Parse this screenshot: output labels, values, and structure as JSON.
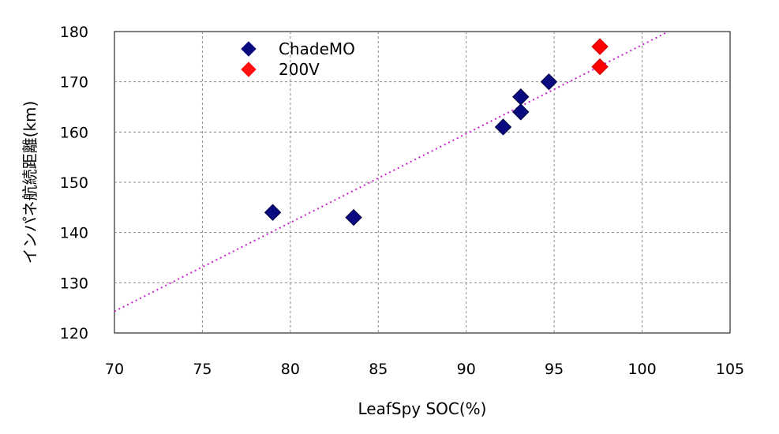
{
  "chart_data": {
    "type": "scatter",
    "title": "",
    "xlabel": "LeafSpy SOC(%)",
    "ylabel": "インパネ航続距離(km)",
    "xlim": [
      70,
      105
    ],
    "ylim": [
      120,
      180
    ],
    "xticks": [
      70,
      75,
      80,
      85,
      90,
      95,
      100,
      105
    ],
    "yticks": [
      120,
      130,
      140,
      150,
      160,
      170,
      180
    ],
    "grid": true,
    "legend_position": "top-left",
    "series": [
      {
        "name": "ChadeMO",
        "marker": "diamond",
        "color": "#0a0a80",
        "points": [
          {
            "x": 79.0,
            "y": 144
          },
          {
            "x": 83.6,
            "y": 143
          },
          {
            "x": 92.1,
            "y": 161
          },
          {
            "x": 93.1,
            "y": 164
          },
          {
            "x": 93.1,
            "y": 167
          },
          {
            "x": 94.7,
            "y": 170
          }
        ]
      },
      {
        "name": "200V",
        "marker": "diamond",
        "color": "#ff0000",
        "points": [
          {
            "x": 97.6,
            "y": 173
          },
          {
            "x": 97.6,
            "y": 177
          }
        ]
      }
    ],
    "trendline": {
      "type": "linear",
      "style": "dotted",
      "color": "#cc22cc",
      "from": {
        "x": 70,
        "y": 124.3
      },
      "to": {
        "x": 101.5,
        "y": 180
      }
    }
  }
}
